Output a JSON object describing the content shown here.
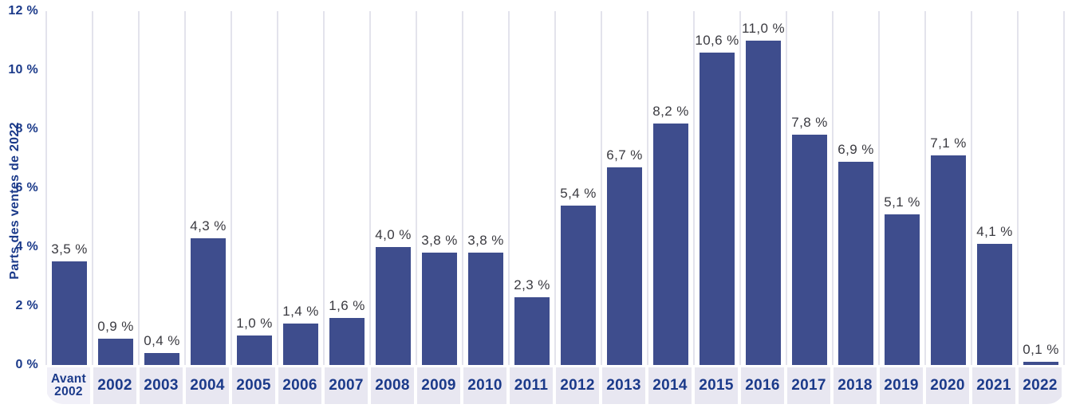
{
  "chart_data": {
    "type": "bar",
    "title": "",
    "ylabel": "Parts des ventes de 2022",
    "xlabel": "",
    "ylim": [
      0,
      12
    ],
    "ytick_step": 2,
    "yticks": [
      "0 %",
      "2 %",
      "4 %",
      "6 %",
      "8 %",
      "10 %",
      "12 %"
    ],
    "grid": "vertical-column-separators-only",
    "legend": "none",
    "categories": [
      "Avant 2002",
      "2002",
      "2003",
      "2004",
      "2005",
      "2006",
      "2007",
      "2008",
      "2009",
      "2010",
      "2011",
      "2012",
      "2013",
      "2014",
      "2015",
      "2016",
      "2017",
      "2018",
      "2019",
      "2020",
      "2021",
      "2022"
    ],
    "values": [
      3.5,
      0.9,
      0.4,
      4.3,
      1.0,
      1.4,
      1.6,
      4.0,
      3.8,
      3.8,
      2.3,
      5.4,
      6.7,
      8.2,
      10.6,
      11.0,
      7.8,
      6.9,
      5.1,
      7.1,
      4.1,
      0.1
    ],
    "value_labels": [
      "3,5 %",
      "0,9 %",
      "0,4 %",
      "4,3 %",
      "1,0 %",
      "1,4 %",
      "1,6 %",
      "4,0 %",
      "3,8 %",
      "3,8 %",
      "2,3 %",
      "5,4 %",
      "6,7 %",
      "8,2 %",
      "10,6 %",
      "11,0 %",
      "7,8 %",
      "6,9 %",
      "5,1 %",
      "7,1 %",
      "4,1 %",
      "0,1 %"
    ]
  },
  "colors": {
    "bar": "#3E4D8D",
    "navy_text": "#1B3A8A",
    "value_text": "#3A3A40",
    "gridline": "#E3E3EC",
    "band": "#E8E7F1",
    "band_first_cell": "#F1F0F8",
    "background": "#FFFFFF"
  }
}
